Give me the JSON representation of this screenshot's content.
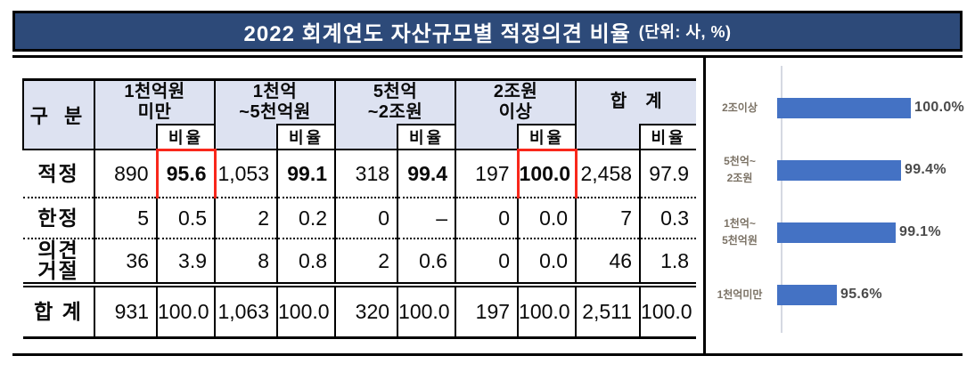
{
  "title": {
    "main": "2022 회계연도 자산규모별 적정의견 비율",
    "unit": "(단위: 사, %)"
  },
  "table": {
    "corner_label": "구 분",
    "ratio_label": "비율",
    "groups": [
      {
        "label": "1천억원\n미만"
      },
      {
        "label": "1천억\n~5천억원"
      },
      {
        "label": "5천억\n~2조원"
      },
      {
        "label": "2조원\n이상"
      },
      {
        "label": "합　계"
      }
    ],
    "rows": [
      {
        "label": "적정",
        "cells": [
          "890",
          "95.6",
          "1,053",
          "99.1",
          "318",
          "99.4",
          "197",
          "100.0",
          "2,458",
          "97.9"
        ]
      },
      {
        "label": "한정",
        "cells": [
          "5",
          "0.5",
          "2",
          "0.2",
          "0",
          "–",
          "0",
          "0.0",
          "7",
          "0.3"
        ]
      },
      {
        "label": "의견\n거절",
        "cells": [
          "36",
          "3.9",
          "8",
          "0.8",
          "2",
          "0.6",
          "0",
          "0.0",
          "46",
          "1.8"
        ]
      },
      {
        "label": "합 계",
        "cells": [
          "931",
          "100.0",
          "1,063",
          "100.0",
          "320",
          "100.0",
          "197",
          "100.0",
          "2,511",
          "100.0"
        ]
      }
    ],
    "highlighted_values": [
      "95.6",
      "100.0"
    ]
  },
  "chart_data": {
    "type": "bar",
    "orientation": "horizontal",
    "categories": [
      "2조이상",
      "5천억~\n2조원",
      "1천억~\n5천억원",
      "1천억미만"
    ],
    "values": [
      100.0,
      99.4,
      99.1,
      95.6
    ],
    "value_labels": [
      "100.0%",
      "99.4%",
      "99.1%",
      "95.6%"
    ],
    "xlim": [
      92,
      100
    ],
    "grid": false,
    "legend": false,
    "bar_color": "#4472c4",
    "axis_line_color": "#d5d9e2",
    "label_color": "#7b7265",
    "value_label_color": "#4a4a4a"
  },
  "colors": {
    "title_bg": "#2d4a79",
    "title_text": "#ffffff",
    "table_header_bg": "#dde2f1",
    "highlight_box": "#f8271b",
    "frame_lines": "#000000"
  }
}
